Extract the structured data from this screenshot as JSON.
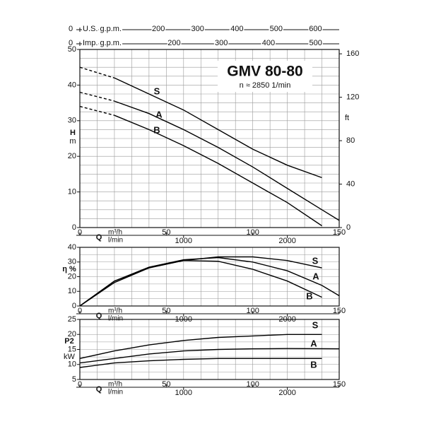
{
  "chart_data": [
    {
      "type": "line",
      "title": "GMV 80-80",
      "subtitle": "n ≈ 2850 1/min",
      "ylabel": "H",
      "yunit": "m",
      "xlabel": "Q",
      "xunit": "m³/h",
      "x2unit": "l/min",
      "xlim": [
        0,
        150
      ],
      "xticks": [
        0,
        50,
        100,
        150
      ],
      "x2lim": [
        0,
        2500
      ],
      "x2ticks": [
        1000,
        2000
      ],
      "ylim": [
        0,
        50
      ],
      "yticks": [
        0,
        10,
        20,
        30,
        40,
        50
      ],
      "y2label": "ft",
      "y2lim": [
        0,
        164
      ],
      "y2ticks": [
        0,
        40,
        80,
        120,
        160
      ],
      "top_axes": [
        {
          "label": "U.S. g.p.m.",
          "xlim": [
            0,
            660.4
          ],
          "xticks": [
            0,
            200,
            300,
            400,
            500,
            600
          ]
        },
        {
          "label": "Imp. g.p.m.",
          "xlim": [
            0,
            549.9
          ],
          "xticks": [
            0,
            200,
            300,
            400,
            500
          ]
        }
      ],
      "xgrid": [
        0,
        10,
        20,
        30,
        40,
        50,
        60,
        70,
        80,
        90,
        100,
        110,
        120,
        130,
        140,
        150
      ],
      "ygrid": [
        0,
        2.5,
        5,
        7.5,
        10,
        12.5,
        15,
        17.5,
        20,
        22.5,
        25,
        27.5,
        30,
        32.5,
        35,
        37.5,
        40,
        42.5,
        45,
        47.5,
        50
      ],
      "dashed_below_x": 20,
      "series": [
        {
          "name": "S",
          "color": "#000000",
          "x": [
            0,
            20,
            40,
            60,
            80,
            100,
            120,
            140
          ],
          "values": [
            45,
            42,
            37.5,
            33,
            27.5,
            22,
            17.5,
            14
          ]
        },
        {
          "name": "A",
          "color": "#000000",
          "x": [
            0,
            20,
            40,
            60,
            80,
            100,
            120,
            140,
            150
          ],
          "values": [
            38,
            35.5,
            32,
            27.5,
            22.5,
            17,
            11,
            5,
            2
          ]
        },
        {
          "name": "B",
          "color": "#000000",
          "x": [
            0,
            20,
            40,
            60,
            80,
            100,
            120,
            140
          ],
          "values": [
            34,
            31.5,
            27.5,
            23,
            18,
            12.5,
            7,
            0.5
          ]
        }
      ]
    },
    {
      "type": "line",
      "ylabel": "η %",
      "xlabel": "Q",
      "xunit": "m³/h",
      "x2unit": "l/min",
      "xlim": [
        0,
        150
      ],
      "xticks": [
        0,
        50,
        100,
        150
      ],
      "x2lim": [
        0,
        2500
      ],
      "x2ticks": [
        1000,
        2000
      ],
      "ylim": [
        0,
        40
      ],
      "yticks": [
        0,
        10,
        20,
        30,
        40
      ],
      "xgrid": [
        0,
        10,
        20,
        30,
        40,
        50,
        60,
        70,
        80,
        90,
        100,
        110,
        120,
        130,
        140,
        150
      ],
      "ygrid": [
        0,
        5,
        10,
        15,
        20,
        25,
        30,
        35,
        40
      ],
      "series": [
        {
          "name": "S",
          "color": "#000000",
          "x": [
            0,
            20,
            40,
            60,
            80,
            100,
            120,
            140
          ],
          "values": [
            0,
            17,
            26,
            31,
            33.5,
            33.5,
            31,
            26
          ]
        },
        {
          "name": "A",
          "color": "#000000",
          "x": [
            0,
            20,
            40,
            60,
            80,
            100,
            120,
            140,
            150
          ],
          "values": [
            0,
            17,
            26.5,
            31.5,
            33,
            30,
            24,
            14,
            7
          ]
        },
        {
          "name": "B",
          "color": "#000000",
          "x": [
            0,
            20,
            40,
            60,
            80,
            100,
            120,
            140
          ],
          "values": [
            0,
            16,
            26,
            31,
            30.5,
            25,
            17,
            6
          ]
        }
      ]
    },
    {
      "type": "line",
      "ylabel": "P2",
      "yunit": "kW",
      "xlabel": "Q",
      "xunit": "m³/h",
      "x2unit": "l/min",
      "xlim": [
        0,
        150
      ],
      "xticks": [
        0,
        50,
        100,
        150
      ],
      "x2lim": [
        0,
        2500
      ],
      "x2ticks": [
        1000,
        2000
      ],
      "ylim": [
        5,
        25
      ],
      "yticks": [
        5,
        10,
        15,
        20,
        25
      ],
      "xgrid": [
        0,
        10,
        20,
        30,
        40,
        50,
        60,
        70,
        80,
        90,
        100,
        110,
        120,
        130,
        140,
        150
      ],
      "ygrid": [
        5,
        7.5,
        10,
        12.5,
        15,
        17.5,
        20,
        22.5,
        25
      ],
      "series": [
        {
          "name": "S",
          "color": "#000000",
          "x": [
            0,
            20,
            40,
            60,
            80,
            100,
            120,
            140
          ],
          "values": [
            12,
            14.5,
            16.5,
            18,
            19,
            19.5,
            20,
            20
          ]
        },
        {
          "name": "A",
          "color": "#000000",
          "x": [
            0,
            20,
            40,
            60,
            80,
            100,
            120,
            150
          ],
          "values": [
            10.5,
            12,
            13.5,
            14.5,
            15,
            15.2,
            15.3,
            15.2
          ]
        },
        {
          "name": "B",
          "color": "#000000",
          "x": [
            0,
            20,
            40,
            60,
            80,
            100,
            120,
            140
          ],
          "values": [
            9,
            10.5,
            11.2,
            11.7,
            12,
            12,
            12,
            12
          ]
        }
      ]
    }
  ]
}
